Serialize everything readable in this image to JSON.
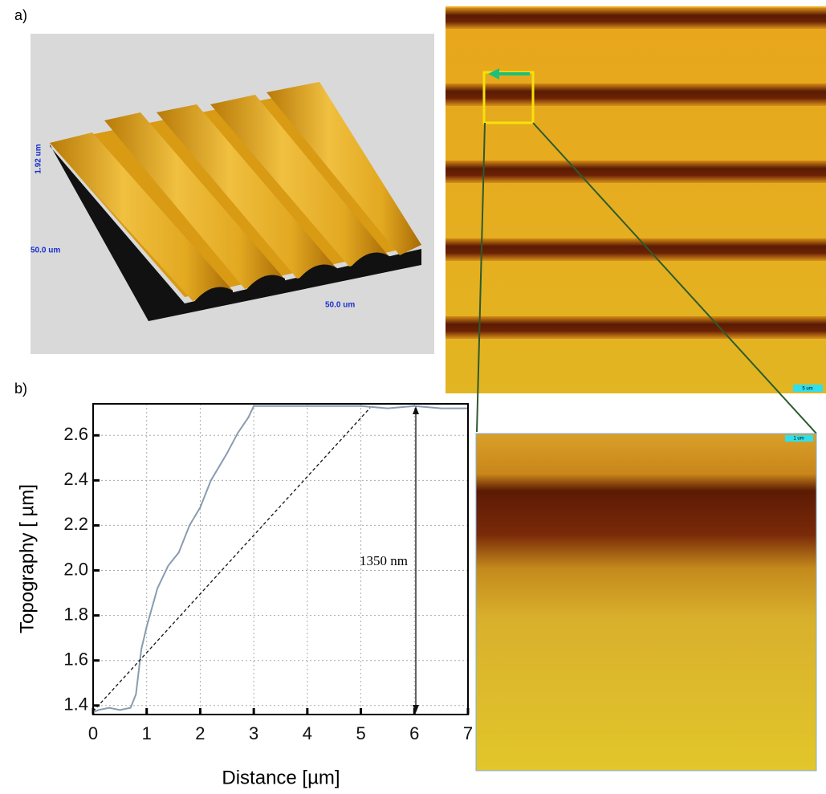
{
  "figure": {
    "panel_a": "a)",
    "panel_b": "b)",
    "height_label": "1.92 um",
    "width_label_left": "50.0 um",
    "width_label_bottom": "50.0 um",
    "scale_bar_main": "5 um",
    "scale_bar_zoom": "1 um"
  },
  "chart_data": {
    "type": "line",
    "xlabel": "Distance [µm]",
    "ylabel": "Topography [ µm]",
    "annotation": "1350 nm",
    "color": "#8a9bb0",
    "x": [
      0,
      0.1,
      0.3,
      0.5,
      0.7,
      0.8,
      0.9,
      1.0,
      1.2,
      1.4,
      1.6,
      1.8,
      2.0,
      2.2,
      2.5,
      2.7,
      2.9,
      3.0,
      3.5,
      4.0,
      4.5,
      5.0,
      5.5,
      6.0,
      6.5,
      7.0
    ],
    "values": [
      1.37,
      1.38,
      1.39,
      1.38,
      1.39,
      1.45,
      1.65,
      1.75,
      1.92,
      2.02,
      2.08,
      2.2,
      2.28,
      2.4,
      2.52,
      2.61,
      2.68,
      2.73,
      2.73,
      2.73,
      2.73,
      2.73,
      2.72,
      2.73,
      2.72,
      2.72
    ],
    "xlim": [
      0,
      7
    ],
    "ylim": [
      1.36,
      2.74
    ],
    "xticks": [
      0,
      1,
      2,
      3,
      4,
      5,
      6,
      7
    ],
    "yticks": [
      1.4,
      1.6,
      1.8,
      {
        "value": 2,
        "label": "2.0"
      },
      2.2,
      2.4,
      2.6
    ],
    "grid": true
  }
}
